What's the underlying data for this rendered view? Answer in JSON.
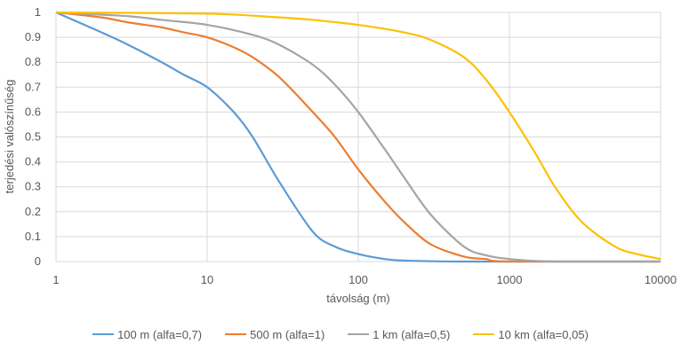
{
  "chart_data": {
    "type": "line",
    "title": "",
    "xlabel": "távolság (m)",
    "ylabel": "terjedési valószínűség",
    "x_scale": "log",
    "xlim": [
      1,
      10000
    ],
    "ylim": [
      0,
      1
    ],
    "grid": true,
    "legend_position": "bottom",
    "x_ticks": [
      "1",
      "10",
      "100",
      "1000",
      "10000"
    ],
    "y_ticks": [
      "0",
      "0.1",
      "0.2",
      "0.3",
      "0.4",
      "0.5",
      "0.6",
      "0.7",
      "0.8",
      "0.9",
      "1"
    ],
    "series": [
      {
        "name": "100 m (alfa=0,7)",
        "color": "#5B9BD5",
        "x": [
          1,
          2,
          3,
          5,
          7,
          10,
          15,
          20,
          30,
          50,
          70,
          100,
          150,
          200,
          500,
          10000
        ],
        "y": [
          1.0,
          0.92,
          0.87,
          0.8,
          0.75,
          0.7,
          0.6,
          0.5,
          0.32,
          0.12,
          0.06,
          0.03,
          0.01,
          0.004,
          0.0,
          0.0
        ]
      },
      {
        "name": "500 m (alfa=1)",
        "color": "#ED7D31",
        "x": [
          1,
          2,
          3,
          5,
          7,
          10,
          15,
          20,
          30,
          50,
          70,
          100,
          150,
          200,
          300,
          500,
          700,
          1000,
          10000
        ],
        "y": [
          1.0,
          0.98,
          0.96,
          0.94,
          0.92,
          0.9,
          0.86,
          0.82,
          0.74,
          0.6,
          0.5,
          0.37,
          0.24,
          0.16,
          0.07,
          0.02,
          0.01,
          0.0,
          0.0
        ]
      },
      {
        "name": "1 km (alfa=0,5)",
        "color": "#A5A5A5",
        "x": [
          1,
          3,
          5,
          10,
          20,
          30,
          50,
          70,
          100,
          150,
          200,
          300,
          500,
          700,
          1000,
          2000,
          10000
        ],
        "y": [
          1.0,
          0.985,
          0.97,
          0.95,
          0.91,
          0.87,
          0.79,
          0.71,
          0.6,
          0.45,
          0.34,
          0.19,
          0.06,
          0.025,
          0.01,
          0.0,
          0.0
        ]
      },
      {
        "name": "10  km (alfa=0,05)",
        "color": "#FFC000",
        "x": [
          1,
          10,
          30,
          50,
          100,
          200,
          300,
          500,
          700,
          1000,
          1500,
          2000,
          3000,
          5000,
          7000,
          10000
        ],
        "y": [
          1.0,
          0.995,
          0.98,
          0.97,
          0.95,
          0.92,
          0.89,
          0.82,
          0.73,
          0.6,
          0.43,
          0.3,
          0.16,
          0.06,
          0.03,
          0.01
        ]
      }
    ]
  }
}
